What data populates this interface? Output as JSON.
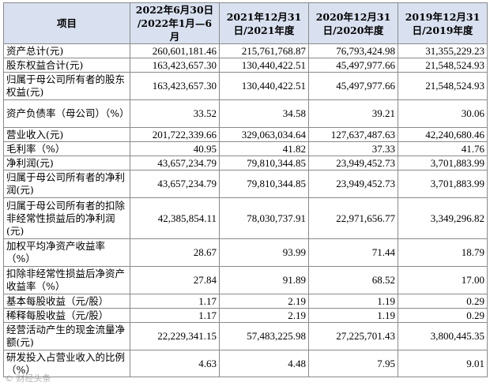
{
  "table": {
    "headers": [
      "项目",
      "2022年6月30日\n/2022年1月—6月",
      "2021年12月31\n日/2021年度",
      "2020年12月31\n日/2020年度",
      "2019年12月31\n日/2019年度"
    ],
    "rows": [
      {
        "label": "资产总计(元)",
        "values": [
          "260,601,181.46",
          "215,761,768.87",
          "76,793,424.98",
          "31,355,229.23"
        ]
      },
      {
        "label": "股东权益合计(元)",
        "values": [
          "163,423,657.30",
          "130,440,422.51",
          "45,497,977.66",
          "21,548,524.93"
        ]
      },
      {
        "label": "归属于母公司所有者的股东权益(元)",
        "values": [
          "163,423,657.30",
          "130,440,422.51",
          "45,497,977.66",
          "21,548,524.93"
        ]
      },
      {
        "label": "资产负债率（母公司）（%）",
        "values": [
          "33.52",
          "34.58",
          "39.21",
          "30.06"
        ]
      },
      {
        "label": "营业收入(元)",
        "values": [
          "201,722,339.66",
          "329,063,034.64",
          "127,637,487.63",
          "42,240,680.46"
        ]
      },
      {
        "label": "毛利率（%）",
        "values": [
          "40.95",
          "41.82",
          "37.33",
          "41.76"
        ]
      },
      {
        "label": "净利润(元)",
        "values": [
          "43,657,234.79",
          "79,810,344.85",
          "23,949,452.73",
          "3,701,883.99"
        ]
      },
      {
        "label": "归属于母公司所有者的净利润(元)",
        "values": [
          "43,657,234.79",
          "79,810,344.85",
          "23,949,452.73",
          "3,701,883.99"
        ]
      },
      {
        "label": "归属于母公司所有者的扣除非经常性损益后的净利润(元)",
        "values": [
          "42,385,854.11",
          "78,030,737.91",
          "22,971,656.77",
          "3,349,296.82"
        ]
      },
      {
        "label": "加权平均净资产收益率（%）",
        "values": [
          "28.67",
          "93.99",
          "71.44",
          "18.79"
        ]
      },
      {
        "label": "扣除非经常性损益后净资产收益率（%）",
        "values": [
          "27.84",
          "91.89",
          "68.52",
          "17.00"
        ]
      },
      {
        "label": "基本每股收益（元/股）",
        "values": [
          "1.17",
          "2.19",
          "1.19",
          "0.29"
        ]
      },
      {
        "label": "稀释每股收益（元/股）",
        "values": [
          "1.17",
          "2.19",
          "1.19",
          "0.29"
        ]
      },
      {
        "label": "经营活动产生的现金流量净额(元)",
        "values": [
          "22,229,341.15",
          "57,483,225.98",
          "27,225,701.43",
          "3,800,445.35"
        ]
      },
      {
        "label": "研发投入占营业收入的比例（%）",
        "values": [
          "4.63",
          "4.48",
          "7.95",
          "9.01"
        ]
      }
    ]
  },
  "watermark": "© 财经头条"
}
